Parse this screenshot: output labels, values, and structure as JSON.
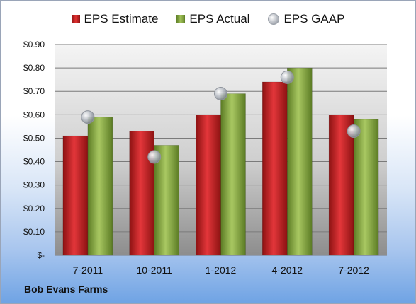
{
  "chart_data": {
    "type": "bar",
    "categories": [
      "7-2011",
      "10-2011",
      "1-2012",
      "4-2012",
      "7-2012"
    ],
    "series": [
      {
        "name": "EPS Estimate",
        "kind": "bar",
        "color": "#c0262d",
        "values": [
          0.51,
          0.53,
          0.6,
          0.74,
          0.6
        ]
      },
      {
        "name": "EPS Actual",
        "kind": "bar",
        "color": "#8db04a",
        "values": [
          0.59,
          0.47,
          0.69,
          0.8,
          0.58
        ]
      },
      {
        "name": "EPS GAAP",
        "kind": "marker",
        "color": "#b3b8c0",
        "values": [
          0.59,
          0.42,
          0.69,
          0.76,
          0.53
        ]
      }
    ],
    "yticks": [
      "$-",
      "$0.10",
      "$0.20",
      "$0.30",
      "$0.40",
      "$0.50",
      "$0.60",
      "$0.70",
      "$0.80",
      "$0.90"
    ],
    "ylim": [
      0,
      0.9
    ],
    "grid": true,
    "legend_position": "top"
  },
  "footer": {
    "company": "Bob Evans Farms"
  }
}
